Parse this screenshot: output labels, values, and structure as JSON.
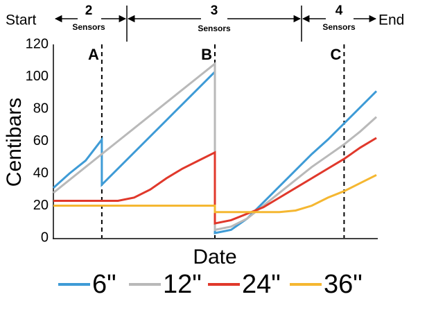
{
  "chart_data": {
    "type": "line",
    "start": "Start",
    "end": "End",
    "stages": [
      {
        "count": 2,
        "label": "Sensors"
      },
      {
        "count": 3,
        "label": "Sensors"
      },
      {
        "count": 4,
        "label": "Sensors"
      }
    ],
    "y_label": "Centibars",
    "x_label": "Date",
    "ylim": [
      0,
      120
    ],
    "yticks": [
      0,
      20,
      40,
      60,
      80,
      100,
      120
    ],
    "xlim": [
      0,
      100
    ],
    "x": [
      0,
      5,
      10,
      15,
      15,
      20,
      25,
      30,
      35,
      40,
      45,
      50,
      50,
      55,
      60,
      65,
      70,
      75,
      80,
      85,
      90,
      95,
      100
    ],
    "markers": [
      {
        "label": "A",
        "x": 15
      },
      {
        "label": "B",
        "x": 50
      },
      {
        "label": "C",
        "x": 90
      }
    ],
    "series": [
      {
        "name": "6\"",
        "color": "#3e9bd6",
        "values": [
          31,
          40,
          48,
          61,
          33,
          43,
          53,
          63,
          73,
          83,
          93,
          103,
          3,
          5,
          12,
          22,
          32,
          42,
          52,
          61,
          71,
          81,
          91
        ]
      },
      {
        "name": "12\"",
        "color": "#b9b9b9",
        "values": [
          28,
          36,
          44,
          52,
          52,
          60,
          68,
          76,
          84,
          92,
          100,
          108,
          5,
          7,
          12,
          20,
          28,
          36,
          44,
          51,
          58,
          66,
          75
        ]
      },
      {
        "name": "24\"",
        "color": "#e0382b",
        "values": [
          23,
          23,
          23,
          23,
          23,
          23,
          25,
          30,
          37,
          43,
          48,
          53,
          9,
          11,
          15,
          19,
          25,
          31,
          37,
          43,
          49,
          56,
          62
        ]
      },
      {
        "name": "36\"",
        "color": "#f5b731",
        "values": [
          20,
          20,
          20,
          20,
          20,
          20,
          20,
          20,
          20,
          20,
          20,
          20,
          16,
          16,
          16,
          16,
          16,
          17,
          20,
          25,
          29,
          34,
          39
        ]
      }
    ]
  }
}
